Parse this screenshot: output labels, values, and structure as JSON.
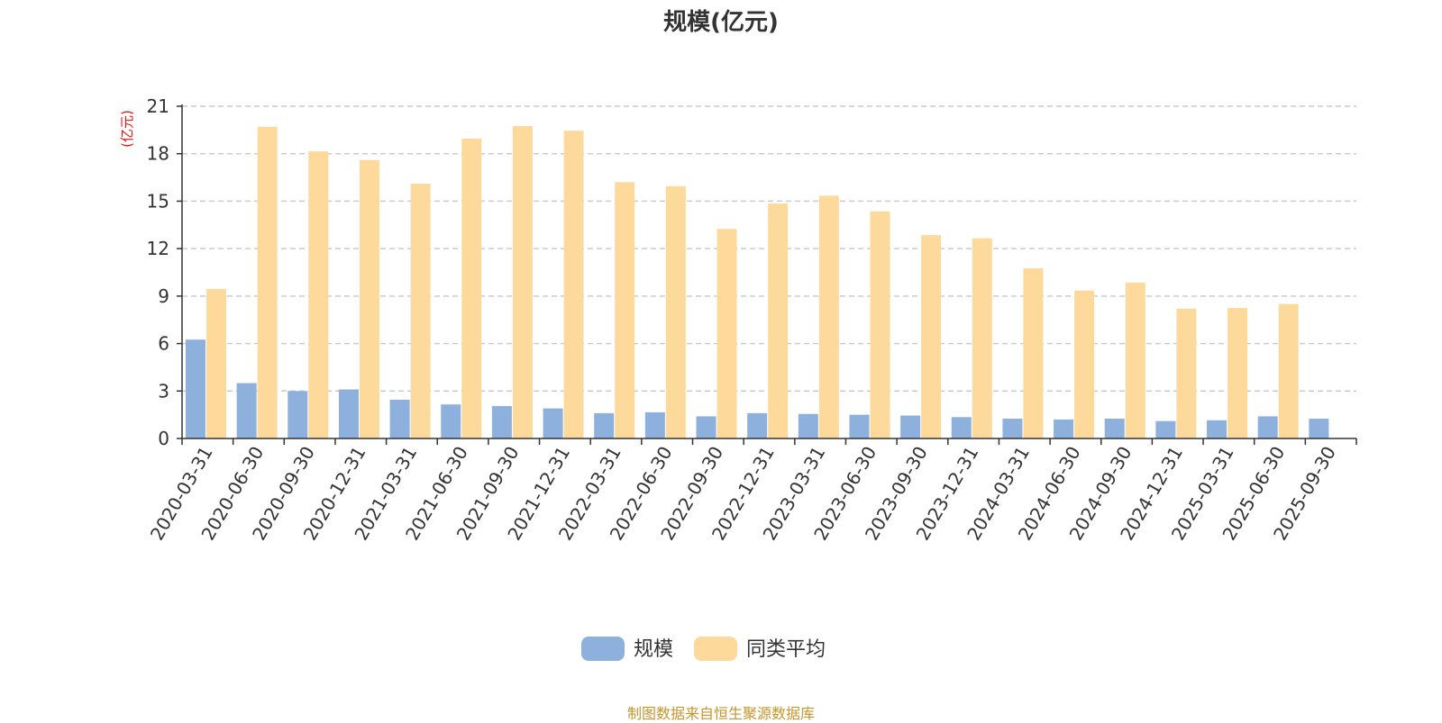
{
  "title": "规模(亿元)",
  "source_note": "制图数据来自恒生聚源数据库",
  "colors": {
    "series_scale": "#8eb0dd",
    "series_avg": "#fdd99b",
    "unit_label": "#ee1111",
    "axis": "#333333",
    "grid": "#cccccc",
    "source_note": "#c7962a"
  },
  "chart_data": {
    "type": "bar",
    "title": "规模(亿元)",
    "ylabel": "(亿元)",
    "xlabel": "",
    "ylim": [
      0,
      21
    ],
    "yticks": [
      0,
      3,
      6,
      9,
      12,
      15,
      18,
      21
    ],
    "grid": true,
    "legend_position": "bottom-center",
    "categories": [
      "2020-03-31",
      "2020-06-30",
      "2020-09-30",
      "2020-12-31",
      "2021-03-31",
      "2021-06-30",
      "2021-09-30",
      "2021-12-31",
      "2022-03-31",
      "2022-06-30",
      "2022-09-30",
      "2022-12-31",
      "2023-03-31",
      "2023-06-30",
      "2023-09-30",
      "2023-12-31",
      "2024-03-31",
      "2024-06-30",
      "2024-09-30",
      "2024-12-31",
      "2025-03-31",
      "2025-06-30",
      "2025-09-30"
    ],
    "series": [
      {
        "name": "规模",
        "values": [
          6.25,
          3.5,
          3.0,
          3.1,
          2.45,
          2.15,
          2.05,
          1.9,
          1.6,
          1.65,
          1.4,
          1.6,
          1.55,
          1.5,
          1.45,
          1.35,
          1.25,
          1.2,
          1.25,
          1.1,
          1.15,
          1.4,
          1.25
        ]
      },
      {
        "name": "同类平均",
        "values": [
          9.45,
          19.7,
          18.15,
          17.6,
          16.1,
          18.95,
          19.75,
          19.45,
          16.2,
          15.95,
          13.25,
          14.85,
          15.35,
          14.35,
          12.85,
          12.65,
          10.75,
          9.35,
          9.85,
          8.2,
          8.25,
          8.5,
          null
        ]
      }
    ]
  }
}
